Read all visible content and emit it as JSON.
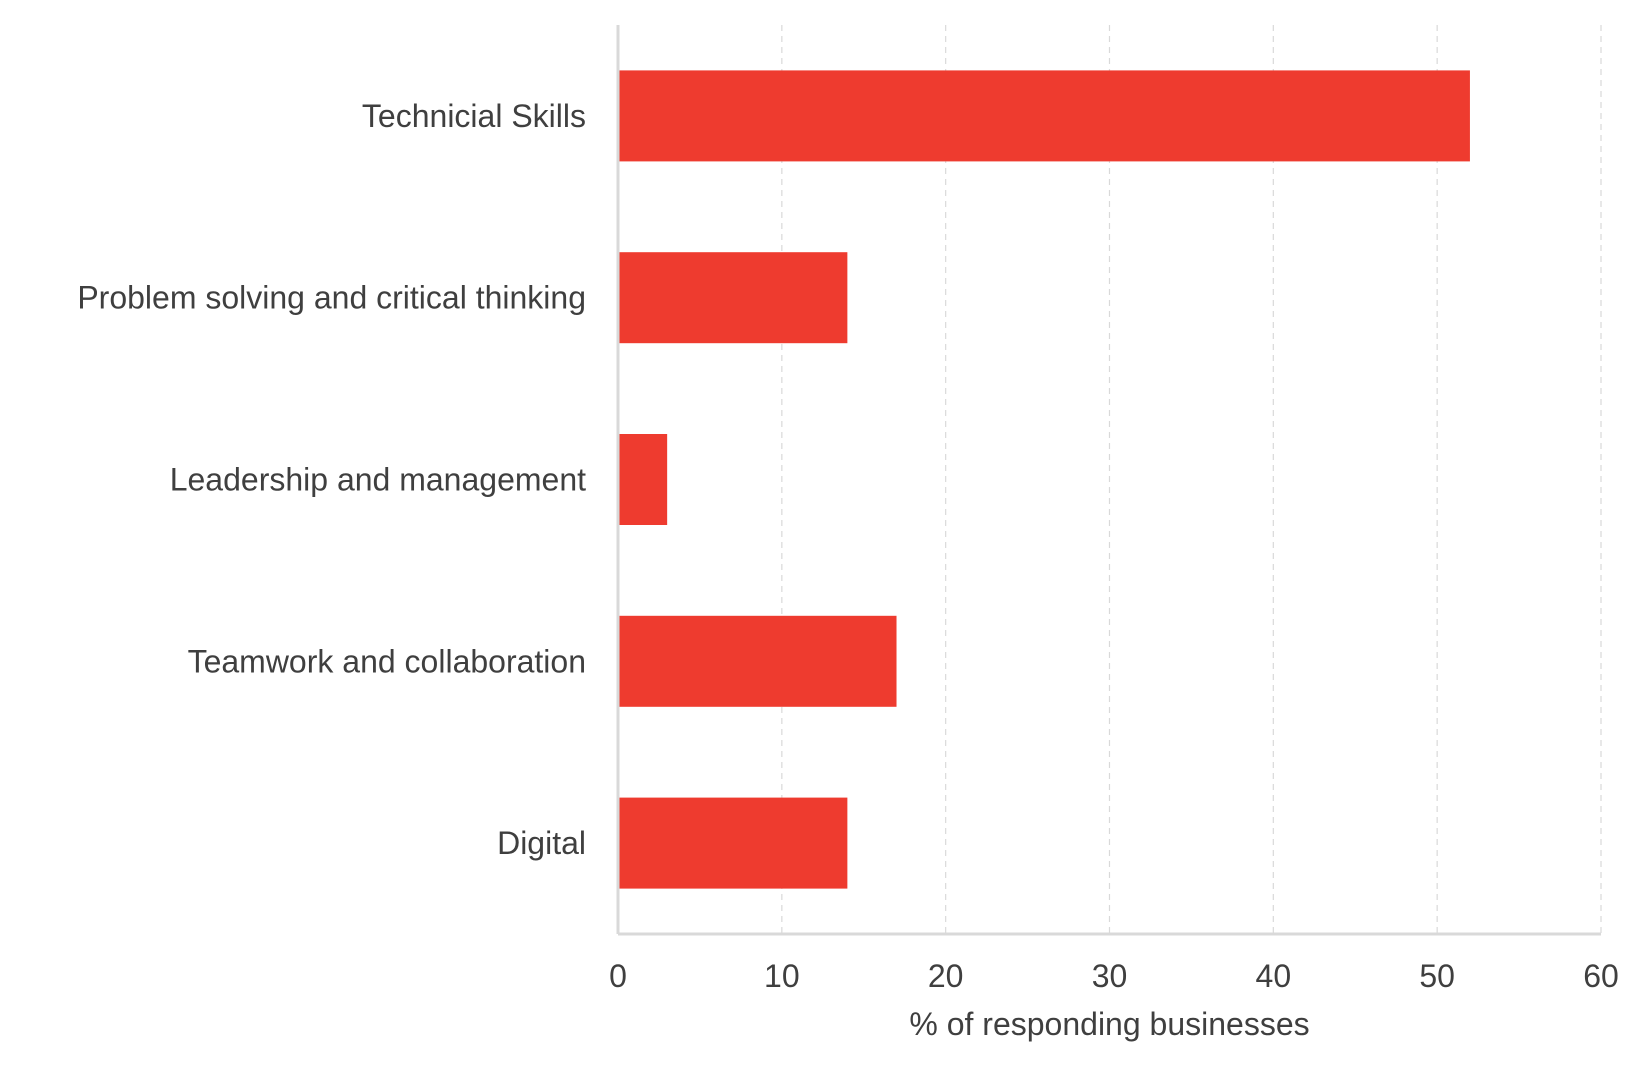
{
  "chart_data": {
    "type": "bar",
    "orientation": "horizontal",
    "title": "",
    "xlabel": "% of responding businesses",
    "ylabel": "",
    "categories": [
      "Technicial Skills",
      "Problem solving and critical thinking",
      "Leadership and management",
      "Teamwork and collaboration",
      "Digital"
    ],
    "values": [
      52,
      14,
      3,
      17,
      14
    ],
    "xlim": [
      0,
      60
    ],
    "xticks": [
      0,
      10,
      20,
      30,
      40,
      50,
      60
    ],
    "grid": "vertical dashed",
    "legend": "none",
    "bar_color": "#ee3b2f",
    "axis_color": "#d9d9d9",
    "text_color": "#3f3f3f"
  }
}
